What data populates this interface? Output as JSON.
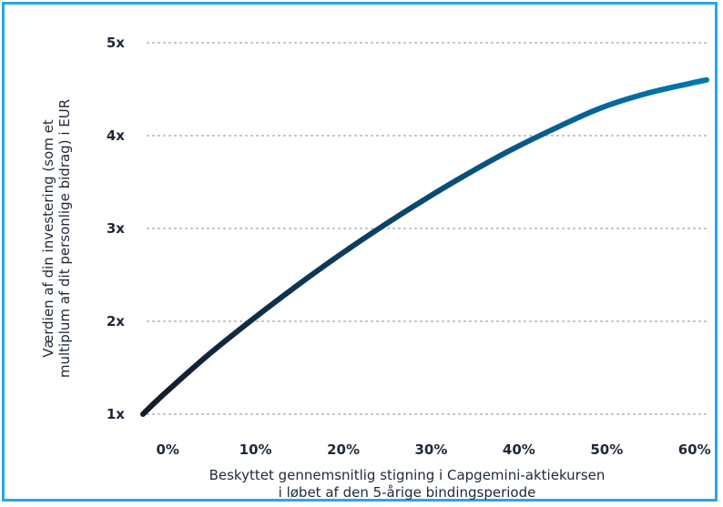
{
  "chart_data": {
    "type": "line",
    "title": "",
    "xlabel_lines": [
      "Beskyttet gennemsnitlig stigning i Capgemini-aktiekursen",
      "i løbet af den 5-årige bindingsperiode"
    ],
    "ylabel_lines": [
      "Værdien af din investering (som et",
      "multiplum af dit personlige bidrag) i EUR"
    ],
    "x_ticks": [
      {
        "value": 0,
        "label": "0%"
      },
      {
        "value": 10,
        "label": "10%"
      },
      {
        "value": 20,
        "label": "20%"
      },
      {
        "value": 30,
        "label": "30%"
      },
      {
        "value": 40,
        "label": "40%"
      },
      {
        "value": 50,
        "label": "50%"
      },
      {
        "value": 60,
        "label": "60%"
      }
    ],
    "y_ticks": [
      {
        "value": 1,
        "label": "1x"
      },
      {
        "value": 2,
        "label": "2x"
      },
      {
        "value": 3,
        "label": "3x"
      },
      {
        "value": 4,
        "label": "4x"
      },
      {
        "value": 5,
        "label": "5x"
      }
    ],
    "xlim": [
      -2.2,
      62
    ],
    "ylim": [
      1,
      5
    ],
    "grid": "horizontal-dotted",
    "series": [
      {
        "color_start": "#151a2b",
        "color_end": "#0078b4",
        "x": [
          -2.2,
          0,
          5,
          10,
          15,
          20,
          25,
          30,
          35,
          40,
          45,
          50,
          55,
          60,
          62
        ],
        "y": [
          1.0,
          1.2,
          1.62,
          2.0,
          2.36,
          2.7,
          3.02,
          3.32,
          3.6,
          3.86,
          4.09,
          4.3,
          4.45,
          4.56,
          4.6
        ]
      }
    ],
    "frame_color": "#26a9dc",
    "grid_color": "#b9bfc6",
    "text_color": "#1f2937"
  }
}
